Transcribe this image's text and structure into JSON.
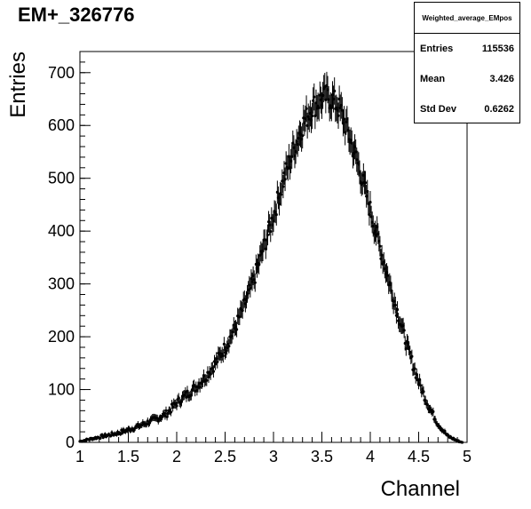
{
  "title": "EM+_326776",
  "stats": {
    "name": "Weighted_average_EMpos",
    "rows": [
      {
        "label": "Entries",
        "value": "115536"
      },
      {
        "label": "Mean",
        "value": "3.426"
      },
      {
        "label": "Std Dev",
        "value": "0.6262"
      }
    ]
  },
  "chart_data": {
    "type": "scatter",
    "title": "EM+_326776",
    "xlabel": "Channel",
    "ylabel": "Entries",
    "xlim": [
      1,
      5
    ],
    "ylim": [
      0,
      740
    ],
    "xticks": [
      "1",
      "1.5",
      "2",
      "2.5",
      "3",
      "3.5",
      "4",
      "4.5",
      "5"
    ],
    "yticks": [
      "0",
      "100",
      "200",
      "300",
      "400",
      "500",
      "600",
      "700"
    ],
    "grid": false,
    "legend": "none",
    "series": [
      {
        "marker": "filled-circle-with-error-bars",
        "color": "#000000",
        "x": [
          1.0,
          1.1,
          1.2,
          1.3,
          1.4,
          1.5,
          1.6,
          1.7,
          1.8,
          1.9,
          2.0,
          2.1,
          2.2,
          2.3,
          2.4,
          2.5,
          2.6,
          2.7,
          2.8,
          2.9,
          3.0,
          3.1,
          3.2,
          3.3,
          3.4,
          3.5,
          3.55,
          3.6,
          3.65,
          3.7,
          3.8,
          3.9,
          4.0,
          4.1,
          4.2,
          4.3,
          4.4,
          4.5,
          4.6,
          4.7,
          4.8,
          4.9,
          4.95
        ],
        "y": [
          2,
          6,
          10,
          14,
          18,
          24,
          30,
          38,
          45,
          55,
          75,
          90,
          105,
          125,
          150,
          180,
          215,
          260,
          310,
          370,
          430,
          495,
          550,
          600,
          635,
          650,
          655,
          650,
          640,
          625,
          570,
          510,
          440,
          370,
          300,
          235,
          170,
          115,
          70,
          35,
          12,
          3,
          0
        ]
      }
    ]
  }
}
